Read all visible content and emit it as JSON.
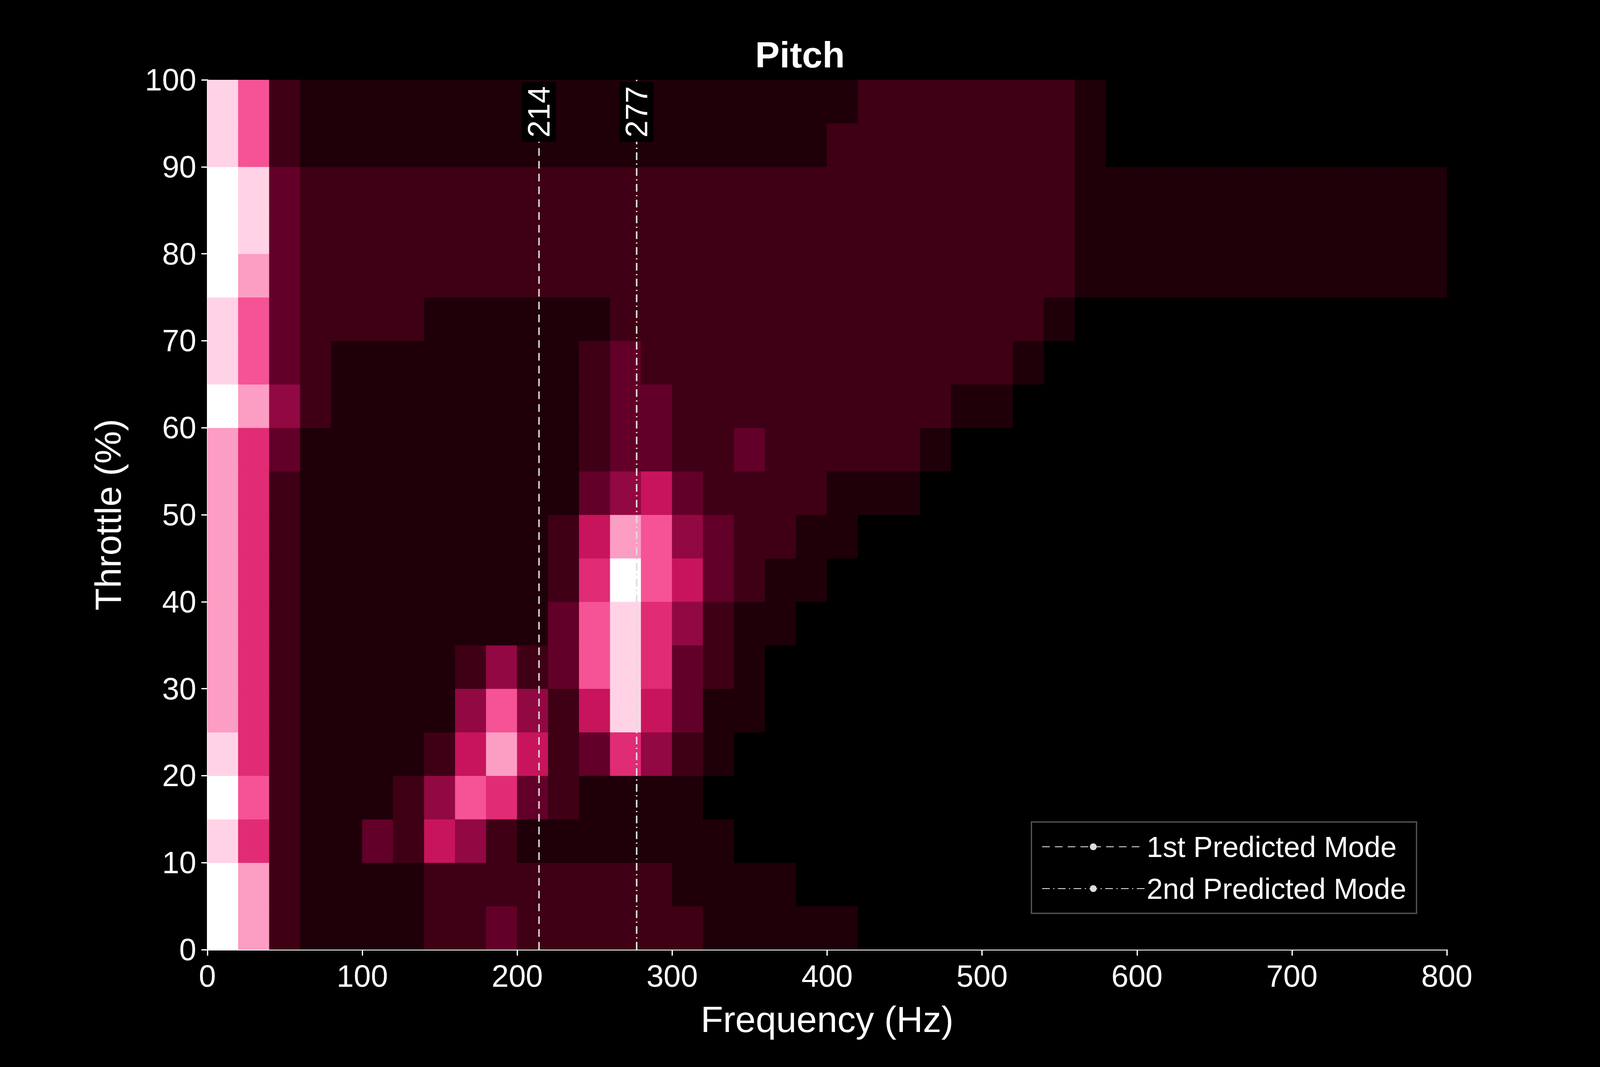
{
  "chart_data": {
    "type": "heatmap",
    "title": "Pitch",
    "x_label": "Frequency (Hz)",
    "y_label": "Throttle (%)",
    "xlim": [
      0,
      800
    ],
    "xticks": [
      0,
      100,
      200,
      300,
      400,
      500,
      600,
      700,
      800
    ],
    "ylim": [
      0,
      100
    ],
    "yticks": [
      0,
      10,
      20,
      30,
      40,
      50,
      60,
      70,
      80,
      90,
      100
    ],
    "grid": false,
    "legend": "lower right",
    "x_bins": [
      0,
      20,
      40,
      60,
      80,
      100,
      120,
      140,
      160,
      180,
      200,
      220,
      240,
      260,
      280,
      300,
      320,
      340,
      360,
      380,
      400,
      420,
      440,
      460,
      480,
      500,
      520,
      540,
      560,
      580,
      600,
      620,
      640,
      660,
      680,
      700,
      720,
      740,
      760,
      780,
      800
    ],
    "y_bins": [
      0,
      5,
      10,
      15,
      20,
      25,
      30,
      35,
      40,
      45,
      50,
      55,
      60,
      65,
      70,
      75,
      80,
      85,
      90,
      95,
      100
    ],
    "zlim": [
      0,
      10
    ],
    "cells": [
      [
        10,
        8,
        2,
        1,
        1,
        1,
        1,
        2,
        2,
        3,
        2,
        2,
        2,
        2,
        2,
        2,
        1,
        1,
        1,
        1,
        1,
        0,
        0,
        0,
        0,
        0,
        0,
        0,
        0,
        0,
        0,
        0,
        0,
        0,
        0,
        0,
        0,
        0,
        0,
        0
      ],
      [
        10,
        8,
        2,
        1,
        1,
        1,
        1,
        2,
        2,
        2,
        2,
        2,
        2,
        2,
        2,
        1,
        1,
        1,
        1,
        0,
        0,
        0,
        0,
        0,
        0,
        0,
        0,
        0,
        0,
        0,
        0,
        0,
        0,
        0,
        0,
        0,
        0,
        0,
        0,
        0
      ],
      [
        9,
        6,
        2,
        1,
        1,
        3,
        2,
        5,
        4,
        2,
        1,
        1,
        1,
        1,
        1,
        1,
        1,
        0,
        0,
        0,
        0,
        0,
        0,
        0,
        0,
        0,
        0,
        0,
        0,
        0,
        0,
        0,
        0,
        0,
        0,
        0,
        0,
        0,
        0,
        0
      ],
      [
        10,
        7,
        2,
        1,
        1,
        1,
        2,
        4,
        7,
        6,
        3,
        2,
        1,
        1,
        1,
        1,
        0,
        0,
        0,
        0,
        0,
        0,
        0,
        0,
        0,
        0,
        0,
        0,
        0,
        0,
        0,
        0,
        0,
        0,
        0,
        0,
        0,
        0,
        0,
        0
      ],
      [
        9,
        6,
        2,
        1,
        1,
        1,
        1,
        2,
        5,
        8,
        5,
        2,
        3,
        6,
        4,
        2,
        1,
        0,
        0,
        0,
        0,
        0,
        0,
        0,
        0,
        0,
        0,
        0,
        0,
        0,
        0,
        0,
        0,
        0,
        0,
        0,
        0,
        0,
        0,
        0
      ],
      [
        8,
        6,
        2,
        1,
        1,
        1,
        1,
        1,
        4,
        7,
        4,
        2,
        5,
        9,
        5,
        3,
        1,
        1,
        0,
        0,
        0,
        0,
        0,
        0,
        0,
        0,
        0,
        0,
        0,
        0,
        0,
        0,
        0,
        0,
        0,
        0,
        0,
        0,
        0,
        0
      ],
      [
        8,
        6,
        2,
        1,
        1,
        1,
        1,
        1,
        2,
        4,
        2,
        3,
        7,
        9,
        6,
        3,
        2,
        1,
        0,
        0,
        0,
        0,
        0,
        0,
        0,
        0,
        0,
        0,
        0,
        0,
        0,
        0,
        0,
        0,
        0,
        0,
        0,
        0,
        0,
        0
      ],
      [
        8,
        6,
        2,
        1,
        1,
        1,
        1,
        1,
        1,
        1,
        1,
        3,
        7,
        9,
        6,
        4,
        2,
        1,
        1,
        0,
        0,
        0,
        0,
        0,
        0,
        0,
        0,
        0,
        0,
        0,
        0,
        0,
        0,
        0,
        0,
        0,
        0,
        0,
        0,
        0
      ],
      [
        8,
        6,
        2,
        1,
        1,
        1,
        1,
        1,
        1,
        1,
        1,
        2,
        6,
        10,
        7,
        5,
        3,
        2,
        1,
        1,
        0,
        0,
        0,
        0,
        0,
        0,
        0,
        0,
        0,
        0,
        0,
        0,
        0,
        0,
        0,
        0,
        0,
        0,
        0,
        0
      ],
      [
        8,
        6,
        2,
        1,
        1,
        1,
        1,
        1,
        1,
        1,
        1,
        2,
        5,
        8,
        7,
        4,
        3,
        2,
        2,
        1,
        1,
        0,
        0,
        0,
        0,
        0,
        0,
        0,
        0,
        0,
        0,
        0,
        0,
        0,
        0,
        0,
        0,
        0,
        0,
        0
      ],
      [
        8,
        6,
        2,
        1,
        1,
        1,
        1,
        1,
        1,
        1,
        1,
        1,
        3,
        4,
        5,
        3,
        2,
        2,
        2,
        2,
        1,
        1,
        1,
        0,
        0,
        0,
        0,
        0,
        0,
        0,
        0,
        0,
        0,
        0,
        0,
        0,
        0,
        0,
        0,
        0
      ],
      [
        8,
        6,
        3,
        1,
        1,
        1,
        1,
        1,
        1,
        1,
        1,
        1,
        2,
        3,
        3,
        2,
        2,
        3,
        2,
        2,
        2,
        2,
        2,
        1,
        0,
        0,
        0,
        0,
        0,
        0,
        0,
        0,
        0,
        0,
        0,
        0,
        0,
        0,
        0,
        0
      ],
      [
        10,
        8,
        4,
        2,
        1,
        1,
        1,
        1,
        1,
        1,
        1,
        1,
        2,
        3,
        3,
        2,
        2,
        2,
        2,
        2,
        2,
        2,
        2,
        2,
        1,
        1,
        0,
        0,
        0,
        0,
        0,
        0,
        0,
        0,
        0,
        0,
        0,
        0,
        0,
        0
      ],
      [
        9,
        7,
        3,
        2,
        1,
        1,
        1,
        1,
        1,
        1,
        1,
        1,
        2,
        3,
        2,
        2,
        2,
        2,
        2,
        2,
        2,
        2,
        2,
        2,
        2,
        2,
        1,
        0,
        0,
        0,
        0,
        0,
        0,
        0,
        0,
        0,
        0,
        0,
        0,
        0
      ],
      [
        9,
        7,
        3,
        2,
        2,
        2,
        2,
        1,
        1,
        1,
        1,
        1,
        1,
        2,
        2,
        2,
        2,
        2,
        2,
        2,
        2,
        2,
        2,
        2,
        2,
        2,
        2,
        1,
        0,
        0,
        0,
        0,
        0,
        0,
        0,
        0,
        0,
        0,
        0,
        0
      ],
      [
        10,
        8,
        3,
        2,
        2,
        2,
        2,
        2,
        2,
        2,
        2,
        2,
        2,
        2,
        2,
        2,
        2,
        2,
        2,
        2,
        2,
        2,
        2,
        2,
        2,
        2,
        2,
        2,
        1,
        1,
        1,
        1,
        1,
        1,
        1,
        1,
        1,
        1,
        1,
        1
      ],
      [
        10,
        9,
        3,
        2,
        2,
        2,
        2,
        2,
        2,
        2,
        2,
        2,
        2,
        2,
        2,
        2,
        2,
        2,
        2,
        2,
        2,
        2,
        2,
        2,
        2,
        2,
        2,
        2,
        1,
        1,
        1,
        1,
        1,
        1,
        1,
        1,
        1,
        1,
        1,
        1
      ],
      [
        10,
        9,
        3,
        2,
        2,
        2,
        2,
        2,
        2,
        2,
        2,
        2,
        2,
        2,
        2,
        2,
        2,
        2,
        2,
        2,
        2,
        2,
        2,
        2,
        2,
        2,
        2,
        2,
        1,
        1,
        1,
        1,
        1,
        1,
        1,
        1,
        1,
        1,
        1,
        1
      ],
      [
        9,
        7,
        2,
        1,
        1,
        1,
        1,
        1,
        1,
        1,
        1,
        1,
        1,
        1,
        1,
        1,
        1,
        1,
        1,
        1,
        2,
        2,
        2,
        2,
        2,
        2,
        2,
        2,
        1,
        0,
        0,
        0,
        0,
        0,
        0,
        0,
        0,
        0,
        0,
        0
      ],
      [
        9,
        7,
        2,
        1,
        1,
        1,
        1,
        1,
        1,
        1,
        1,
        1,
        1,
        1,
        1,
        1,
        1,
        1,
        1,
        1,
        1,
        2,
        2,
        2,
        2,
        2,
        2,
        2,
        1,
        0,
        0,
        0,
        0,
        0,
        0,
        0,
        0,
        0,
        0,
        0
      ]
    ],
    "modes": [
      {
        "name": "1st Predicted Mode",
        "value": 214,
        "line_style": "dashed"
      },
      {
        "name": "2nd Predicted Mode",
        "value": 277,
        "line_style": "dashdot"
      }
    ]
  }
}
